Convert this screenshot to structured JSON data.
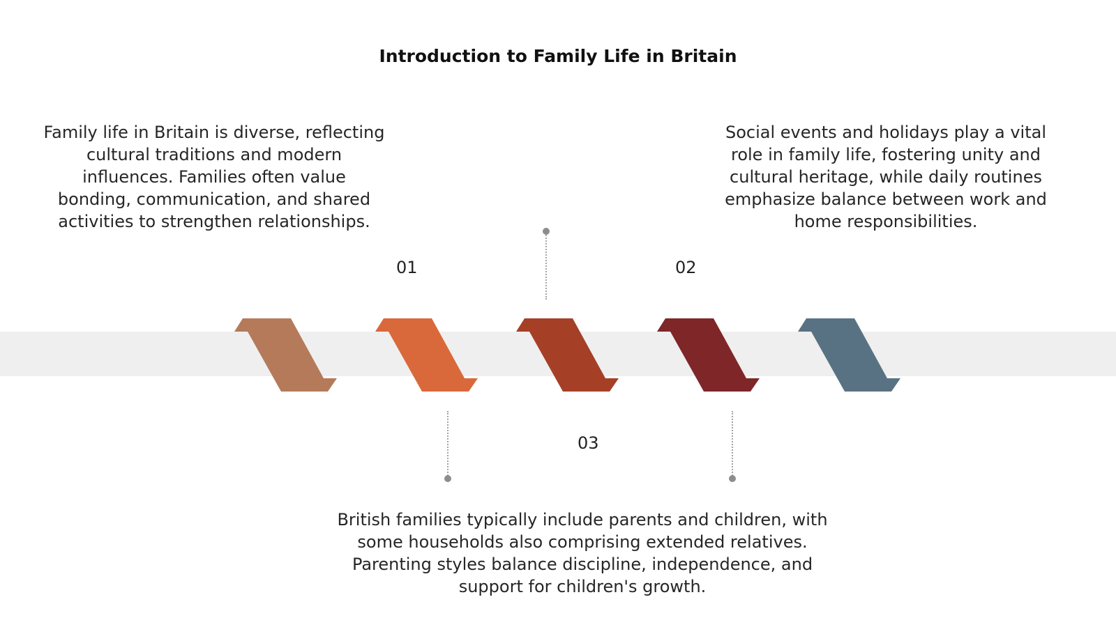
{
  "title": "Introduction to Family Life in Britain",
  "steps": [
    {
      "number": "01",
      "text": "Family life in Britain is diverse, reflecting cultural traditions and modern influences. Families often value bonding, communication, and shared activities to strengthen relationships."
    },
    {
      "number": "02",
      "text": "Social events and holidays play a vital role in family life, fostering unity and cultural heritage, while daily routines emphasize balance between work and home responsibilities."
    },
    {
      "number": "03",
      "text": "British families typically include parents and children, with some households also comprising extended relatives. Parenting styles balance discipline, independence, and support for children's growth."
    }
  ],
  "chevron_colors": [
    "#b57a5a",
    "#d9693a",
    "#a54027",
    "#7f2629",
    "#597283"
  ],
  "colors": {
    "band": "#efefef",
    "connector": "#a3a3a3"
  }
}
